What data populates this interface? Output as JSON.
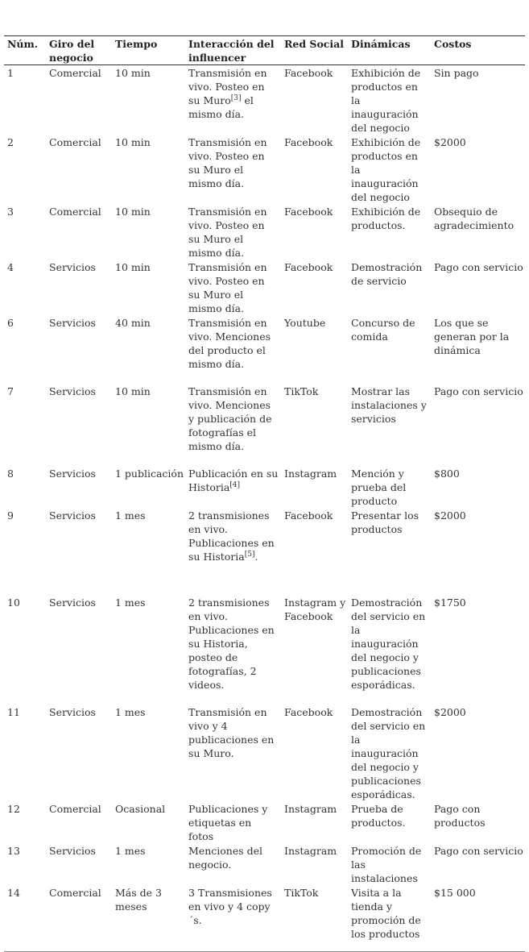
{
  "headers": [
    "Núm.",
    "Giro del negocio",
    "Tiempo",
    "Interacción del influencer",
    "Red Social",
    "Dinámicas",
    "Costos"
  ],
  "rows": [
    {
      "num": "1",
      "giro": "Comercial",
      "tiempo": "10 min",
      "interaccion": {
        "text": "Transmisión en vivo. Posteo en su Muro",
        "sup": "[3]",
        "after": " el mismo día."
      },
      "red": "Facebook",
      "dinamicas": "Exhibición de productos en la inauguración del negocio",
      "costos": "Sin pago"
    },
    {
      "num": "2",
      "giro": "Comercial",
      "tiempo": "10 min",
      "interaccion": {
        "text": "Transmisión en vivo. Posteo en su Muro el mismo día."
      },
      "red": "Facebook",
      "dinamicas": "Exhibición de productos en la inauguración del negocio",
      "costos": "$2000"
    },
    {
      "num": "3",
      "giro": "Comercial",
      "tiempo": "10 min",
      "interaccion": {
        "text": "Transmisión en vivo. Posteo en su Muro el mismo día."
      },
      "red": "Facebook",
      "dinamicas": "Exhibición de productos.",
      "costos": "Obsequio de agradecimiento"
    },
    {
      "num": "4",
      "giro": "Servicios",
      "tiempo": "10 min",
      "interaccion": {
        "text": "Transmisión en vivo. Posteo en su Muro el mismo día."
      },
      "red": "Facebook",
      "dinamicas": "Demostración de servicio",
      "costos": "Pago con servicio"
    },
    {
      "num": "6",
      "giro": "Servicios",
      "tiempo": "40 min",
      "interaccion": {
        "text": "Transmisión en vivo. Menciones del producto el mismo día."
      },
      "red": "Youtube",
      "dinamicas": "Concurso de comida",
      "costos": "Los que se generan por la dinámica"
    },
    {
      "num": "7",
      "giro": "Servicios",
      "tiempo": "10 min",
      "interaccion": {
        "text": "Transmisión en vivo. Menciones y publicación de fotografías el mismo día."
      },
      "red": "TikTok",
      "dinamicas": "Mostrar las instalaciones y servicios",
      "costos": "Pago con servicio"
    },
    {
      "num": "8",
      "giro": "Servicios",
      "tiempo": "1 publicación",
      "interaccion": {
        "text": "Publicación en su Historia",
        "sup": "[4]",
        "after": ""
      },
      "red": "Instagram",
      "dinamicas": "Mención y prueba del producto",
      "costos": "$800"
    },
    {
      "num": "9",
      "giro": "Servicios",
      "tiempo": "1 mes",
      "interaccion": {
        "text": "2 transmisiones en vivo. Publicaciones en su Historia",
        "sup": "[5]",
        "after": "."
      },
      "red": "Facebook",
      "dinamicas": "Presentar los productos",
      "costos": "$2000"
    },
    {
      "num": "10",
      "giro": "Servicios",
      "tiempo": "1 mes",
      "interaccion": {
        "text": "2 transmisiones en vivo. Publicaciones en su Historia, posteo de fotografías, 2 videos."
      },
      "red": "Instagram y Facebook",
      "dinamicas": "Demostración del servicio en la inauguración del negocio y publicaciones esporádicas.",
      "costos": "$1750"
    },
    {
      "num": "11",
      "giro": "Servicios",
      "tiempo": "1 mes",
      "interaccion": {
        "text": "Transmisión en vivo y 4 publicaciones en su Muro."
      },
      "red": "Facebook",
      "dinamicas": "Demostración del servicio en la inauguración del negocio y publicaciones esporádicas.",
      "costos": "$2000"
    },
    {
      "num": "12",
      "giro": "Comercial",
      "tiempo": "Ocasional",
      "interaccion": {
        "text": "Publicaciones y etiquetas en fotos"
      },
      "red": "Instagram",
      "dinamicas": "Prueba de productos.",
      "costos": "Pago con productos"
    },
    {
      "num": "13",
      "giro": "Servicios",
      "tiempo": "1 mes",
      "interaccion": {
        "text": "Menciones del negocio."
      },
      "red": "Instagram",
      "dinamicas": "Promoción de las instalaciones",
      "costos": "Pago con servicio"
    },
    {
      "num": "14",
      "giro": "Comercial",
      "tiempo": "Más de 3 meses",
      "interaccion": {
        "text": "3 Transmisiones en vivo y 4 copy´s."
      },
      "red": "TikTok",
      "dinamicas": "Visita a la tienda y promoción de los productos",
      "costos": "$15 000"
    }
  ]
}
